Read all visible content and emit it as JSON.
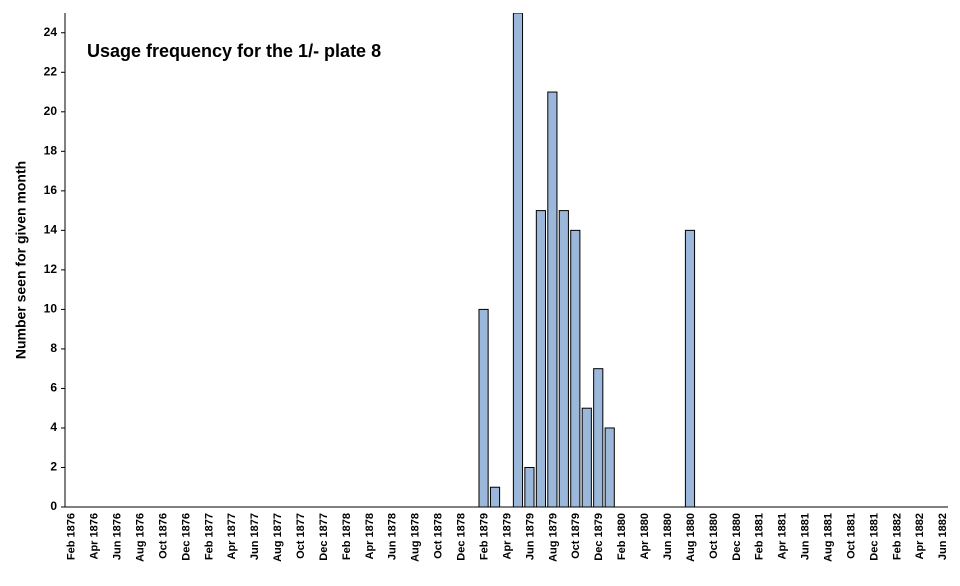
{
  "chart_data": {
    "type": "bar",
    "title": "Usage frequency for the 1/- plate 8",
    "y_label": "Number seen for given month",
    "categories": [
      "Feb 1876",
      null,
      "Apr 1876",
      null,
      "Jun 1876",
      null,
      "Aug 1876",
      null,
      "Oct 1876",
      null,
      "Dec 1876",
      null,
      "Feb 1877",
      null,
      "Apr 1877",
      null,
      "Jun 1877",
      null,
      "Aug 1877",
      null,
      "Oct 1877",
      null,
      "Dec 1877",
      null,
      "Feb 1878",
      null,
      "Apr 1878",
      null,
      "Jun 1878",
      null,
      "Aug 1878",
      null,
      "Oct 1878",
      null,
      "Dec 1878",
      null,
      "Feb 1879",
      null,
      "Apr 1879",
      null,
      "Jun 1879",
      null,
      "Aug 1879",
      null,
      "Oct 1879",
      null,
      "Dec 1879",
      null,
      "Feb 1880",
      null,
      "Apr 1880",
      null,
      "Jun 1880",
      null,
      "Aug 1880",
      null,
      "Oct 1880",
      null,
      "Dec 1880",
      null,
      "Feb 1881",
      null,
      "Apr 1881",
      null,
      "Jun 1881",
      null,
      "Aug 1881",
      null,
      "Oct 1881",
      null,
      "Dec 1881",
      null,
      "Feb 1882",
      null,
      "Apr 1882",
      null,
      "Jun 1882"
    ],
    "values": [
      0,
      0,
      0,
      0,
      0,
      0,
      0,
      0,
      0,
      0,
      0,
      0,
      0,
      0,
      0,
      0,
      0,
      0,
      0,
      0,
      0,
      0,
      0,
      0,
      0,
      0,
      0,
      0,
      0,
      0,
      0,
      0,
      0,
      0,
      0,
      0,
      10,
      1,
      0,
      25,
      2,
      15,
      21,
      15,
      14,
      5,
      7,
      4,
      0,
      0,
      0,
      0,
      0,
      0,
      14,
      0,
      0,
      0,
      0,
      0,
      0,
      0,
      0,
      0,
      0,
      0,
      0,
      0,
      0,
      0,
      0,
      0,
      0,
      0,
      0,
      0,
      0
    ],
    "color": "#9bb7d9",
    "ylim": [
      0,
      25
    ],
    "yticks": [
      0,
      2,
      4,
      6,
      8,
      10,
      12,
      14,
      16,
      18,
      20,
      22,
      24
    ],
    "grid": false
  }
}
